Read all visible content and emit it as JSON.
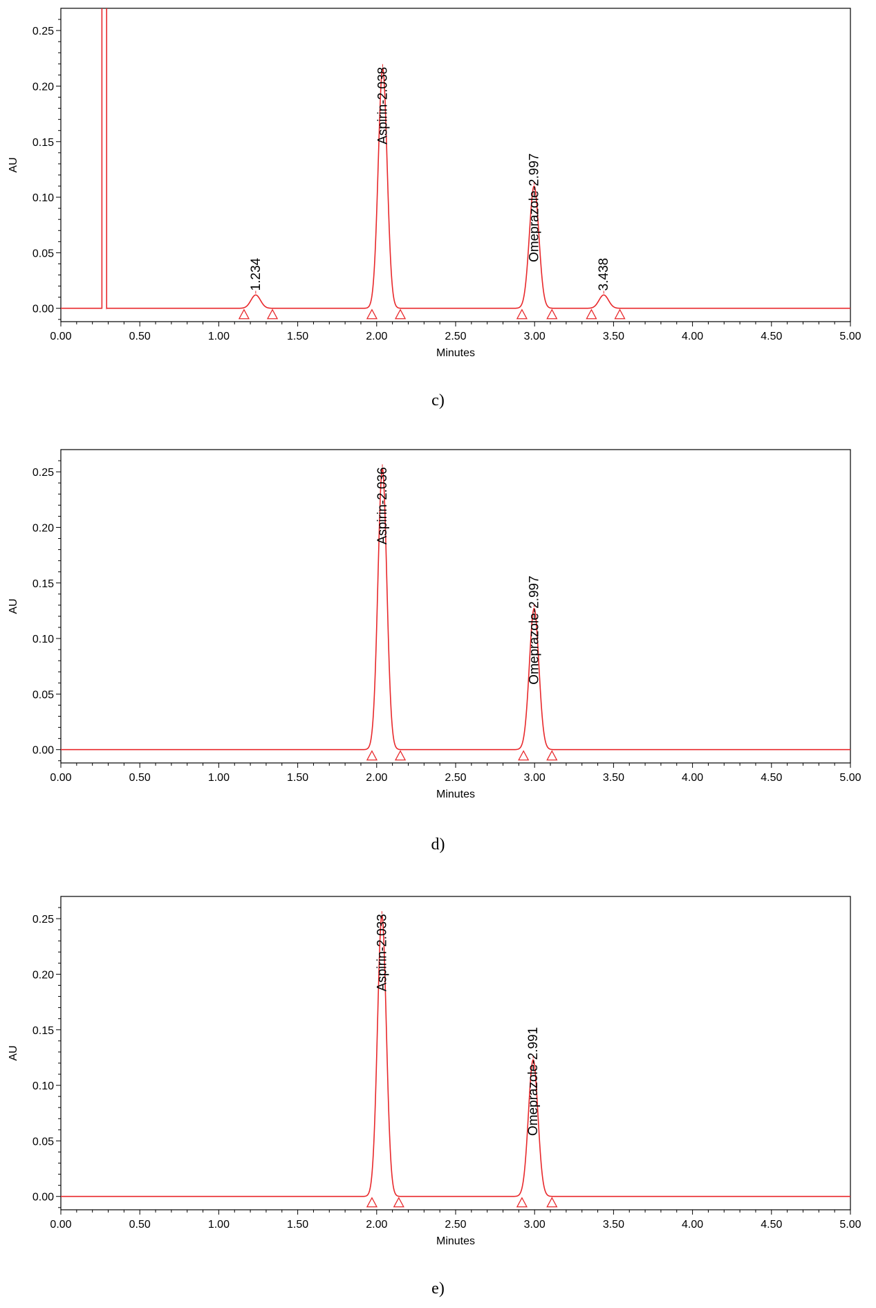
{
  "chart_data": [
    {
      "type": "line",
      "caption": "c)",
      "xlabel": "Minutes",
      "ylabel": "AU",
      "xlim": [
        0.0,
        5.0
      ],
      "ylim": [
        -0.012,
        0.27
      ],
      "x_ticks": [
        "0.00",
        "0.50",
        "1.00",
        "1.50",
        "2.00",
        "2.50",
        "3.00",
        "3.50",
        "4.00",
        "4.50",
        "5.00"
      ],
      "y_ticks": [
        "0.00",
        "0.05",
        "0.10",
        "0.15",
        "0.20",
        "0.25"
      ],
      "line_color": "#e8272a",
      "solvent_front": {
        "start": 0.26,
        "end": 0.29
      },
      "peaks": [
        {
          "rt": 1.234,
          "height": 0.012,
          "sigma": 0.03,
          "label": "1.234",
          "start": 1.16,
          "end": 1.34
        },
        {
          "rt": 2.038,
          "height": 0.216,
          "sigma": 0.028,
          "label": "Aspirin-2.038",
          "start": 1.97,
          "end": 2.15
        },
        {
          "rt": 2.997,
          "height": 0.11,
          "sigma": 0.03,
          "label": "Omeprazole-2.997",
          "start": 2.92,
          "end": 3.11
        },
        {
          "rt": 3.438,
          "height": 0.012,
          "sigma": 0.03,
          "label": "3.438",
          "start": 3.36,
          "end": 3.54
        }
      ]
    },
    {
      "type": "line",
      "caption": "d)",
      "xlabel": "Minutes",
      "ylabel": "AU",
      "xlim": [
        0.0,
        5.0
      ],
      "ylim": [
        -0.012,
        0.27
      ],
      "x_ticks": [
        "0.00",
        "0.50",
        "1.00",
        "1.50",
        "2.00",
        "2.50",
        "3.00",
        "3.50",
        "4.00",
        "4.50",
        "5.00"
      ],
      "y_ticks": [
        "0.00",
        "0.05",
        "0.10",
        "0.15",
        "0.20",
        "0.25"
      ],
      "line_color": "#e8272a",
      "peaks": [
        {
          "rt": 2.036,
          "height": 0.253,
          "sigma": 0.028,
          "label": "Aspirin-2.036",
          "start": 1.97,
          "end": 2.15
        },
        {
          "rt": 2.997,
          "height": 0.127,
          "sigma": 0.03,
          "label": "Omeprazole-2.997",
          "start": 2.93,
          "end": 3.11
        }
      ]
    },
    {
      "type": "line",
      "caption": "e)",
      "xlabel": "Minutes",
      "ylabel": "AU",
      "xlim": [
        0.0,
        5.0
      ],
      "ylim": [
        -0.012,
        0.27
      ],
      "x_ticks": [
        "0.00",
        "0.50",
        "1.00",
        "1.50",
        "2.00",
        "2.50",
        "3.00",
        "3.50",
        "4.00",
        "4.50",
        "5.00"
      ],
      "y_ticks": [
        "0.00",
        "0.05",
        "0.10",
        "0.15",
        "0.20",
        "0.25"
      ],
      "line_color": "#e8272a",
      "peaks": [
        {
          "rt": 2.033,
          "height": 0.253,
          "sigma": 0.028,
          "label": "Aspirin-2.033",
          "start": 1.97,
          "end": 2.14
        },
        {
          "rt": 2.991,
          "height": 0.123,
          "sigma": 0.03,
          "label": "Omeprazole-2.991",
          "start": 2.92,
          "end": 3.11
        }
      ]
    }
  ]
}
